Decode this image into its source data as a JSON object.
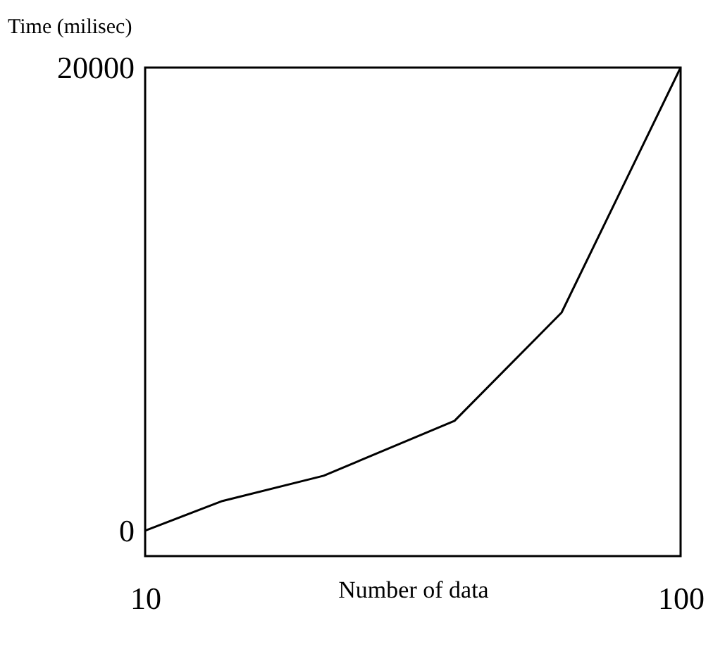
{
  "chart_data": {
    "type": "line",
    "xlabel": "Number of data",
    "ylabel": "Time (milisec)",
    "x": [
      10,
      23,
      40,
      62,
      80,
      100
    ],
    "values": [
      0,
      1280,
      2370,
      4740,
      9420,
      20000
    ],
    "color": "#000000",
    "xlim": [
      10,
      100
    ],
    "xticks": [
      10,
      100
    ],
    "ylim": [
      -1100,
      20000
    ],
    "yticks": [
      0,
      20000
    ],
    "grid": false,
    "marker": "none",
    "line_style": "solid"
  }
}
